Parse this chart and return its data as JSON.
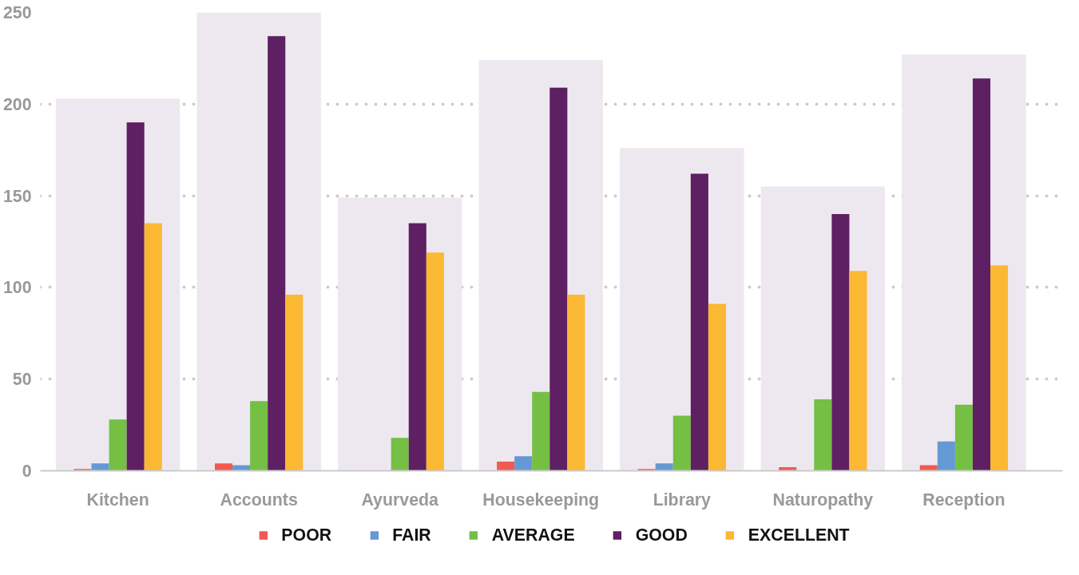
{
  "chart_data": {
    "type": "bar",
    "categories": [
      "Kitchen",
      "Accounts",
      "Ayurveda",
      "Housekeeping",
      "Library",
      "Naturopathy",
      "Reception"
    ],
    "series": [
      {
        "color": "#ede8ef",
        "values": [
          203,
          250,
          149,
          224,
          176,
          155,
          227
        ]
      },
      {
        "name": "POOR",
        "color": "#f05a4f",
        "values": [
          1,
          4,
          0,
          5,
          1,
          2,
          3
        ]
      },
      {
        "name": "FAIR",
        "color": "#6599d3",
        "values": [
          4,
          3,
          0,
          8,
          4,
          0,
          16
        ]
      },
      {
        "name": "AVERAGE",
        "color": "#74bf44",
        "values": [
          28,
          38,
          18,
          43,
          30,
          39,
          36
        ]
      },
      {
        "name": "GOOD",
        "color": "#5e1f63",
        "values": [
          190,
          237,
          135,
          209,
          162,
          140,
          214
        ]
      },
      {
        "name": "EXCELLENT",
        "color": "#fbb832",
        "values": [
          135,
          96,
          119,
          96,
          91,
          109,
          112
        ]
      }
    ],
    "ylim": [
      0,
      250
    ],
    "yticks": [
      0,
      50,
      100,
      150,
      200,
      250
    ],
    "grid": "y",
    "legend": "bottom"
  }
}
